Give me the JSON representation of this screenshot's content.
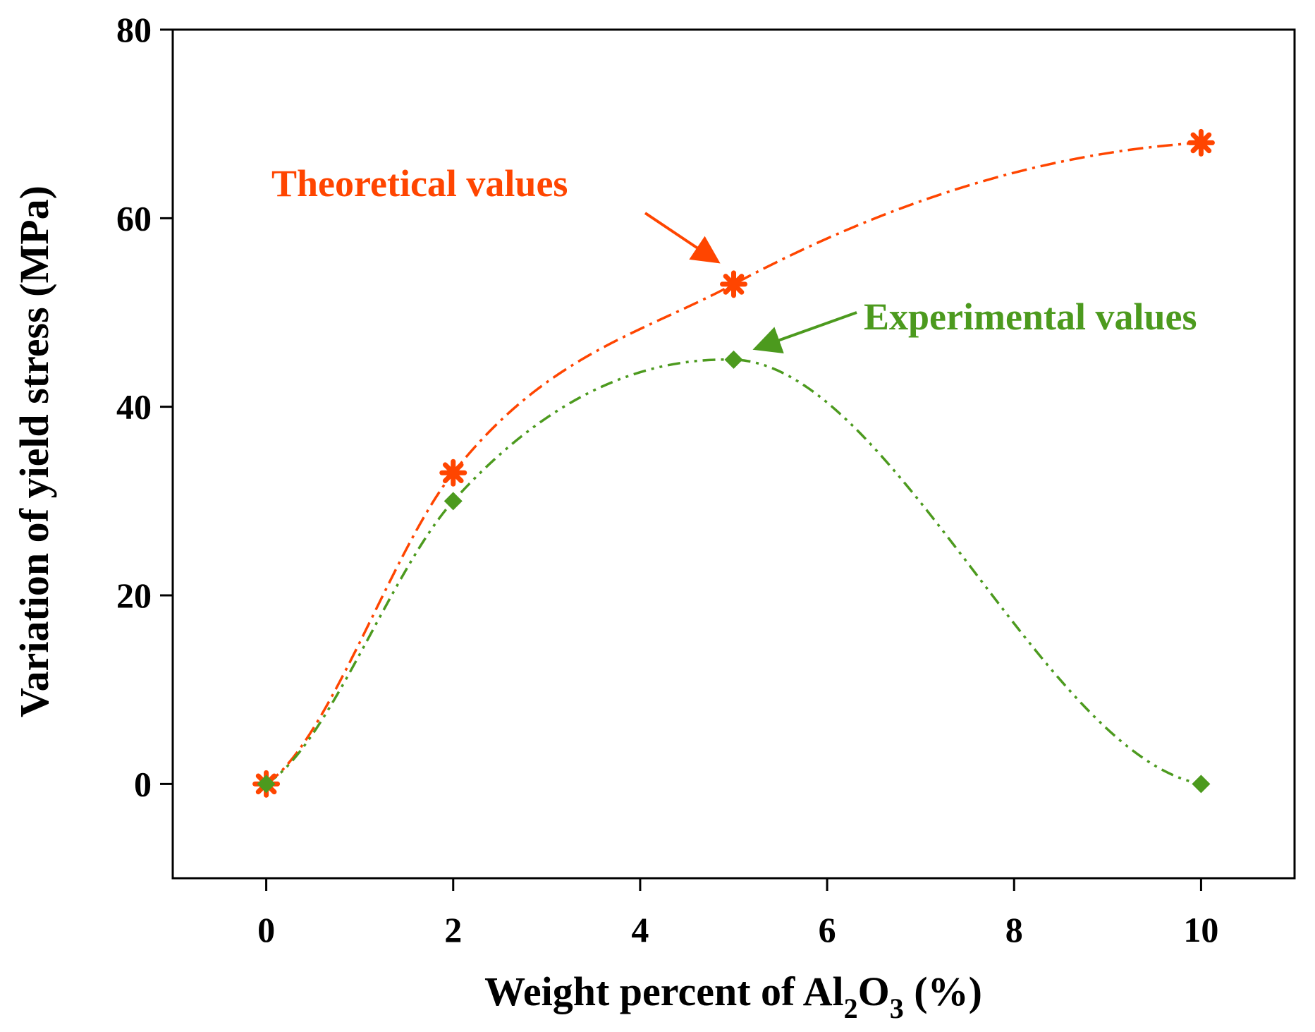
{
  "chart_data": {
    "type": "line",
    "title": "",
    "xlabel": {
      "main": "Weight percent of Al",
      "sub1": "2",
      "mid": "O",
      "sub2": "3",
      "tail": " (%)"
    },
    "ylabel": "Variation of yield stress (MPa)",
    "xlim": [
      -1,
      11
    ],
    "ylim": [
      -10,
      80
    ],
    "xticks": [
      0,
      2,
      4,
      6,
      8,
      10
    ],
    "yticks": [
      0,
      20,
      40,
      60,
      80
    ],
    "grid": false,
    "series": [
      {
        "name": "Theoretical values",
        "color": "#ff4500",
        "marker": "asterisk",
        "x": [
          0,
          2,
          5,
          10
        ],
        "y": [
          0,
          33,
          53,
          68
        ]
      },
      {
        "name": "Experimental values",
        "color": "#4c9a1e",
        "marker": "diamond",
        "x": [
          0,
          2,
          5,
          10
        ],
        "y": [
          0,
          30,
          45,
          0
        ]
      }
    ],
    "annotations": [
      {
        "text": "Theoretical values",
        "series": 0,
        "points_to_x": 5,
        "points_to_y": 53
      },
      {
        "text": "Experimental values",
        "series": 1,
        "points_to_x": 5,
        "points_to_y": 45
      }
    ]
  }
}
